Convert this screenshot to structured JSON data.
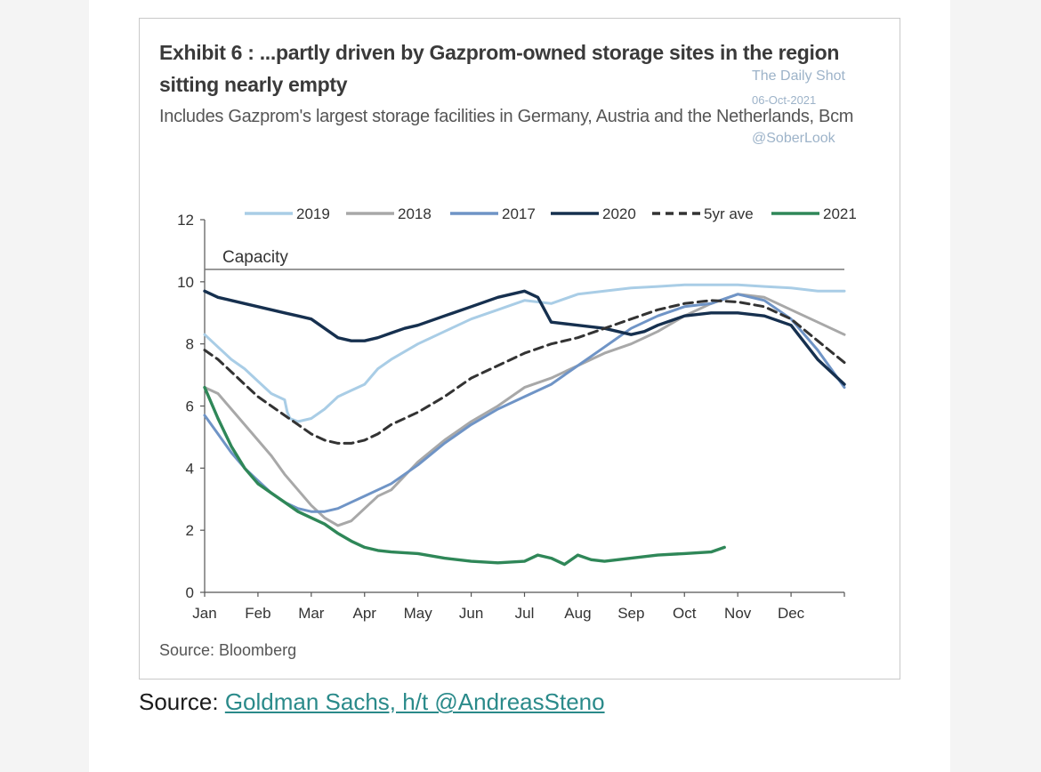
{
  "figure": {
    "title": "Exhibit 6 : ...partly driven by Gazprom-owned storage sites in the region sitting nearly empty",
    "subtitle": "Includes Gazprom's largest storage facilities in Germany, Austria and the Netherlands, Bcm",
    "source": "Source: Bloomberg",
    "watermark": {
      "line1": "The Daily Shot",
      "line2": "06-Oct-2021",
      "line3": "@SoberLook"
    }
  },
  "caption": {
    "prefix": "Source: ",
    "link_text": "Goldman Sachs, h/t @AndreasSteno"
  },
  "colors": {
    "2019": "#a9cde6",
    "2018": "#a8a8a8",
    "2017": "#6f94c6",
    "2020": "#16304f",
    "5yr ave": "#333333",
    "2021": "#2f8758",
    "capacity": "#777777"
  },
  "chart_data": {
    "type": "line",
    "xlabel": "",
    "ylabel": "",
    "ylim": [
      0,
      12
    ],
    "yticks": [
      0,
      2,
      4,
      6,
      8,
      10,
      12
    ],
    "xlim": [
      0,
      12
    ],
    "x_tick_labels": [
      "Jan",
      "Feb",
      "Mar",
      "Apr",
      "May",
      "Jun",
      "Jul",
      "Aug",
      "Sep",
      "Oct",
      "Nov",
      "Dec"
    ],
    "legend_position": "top",
    "grid": false,
    "reference_line": {
      "label": "Capacity",
      "value": 10.4
    },
    "series": [
      {
        "name": "2019",
        "dash": "solid",
        "x": [
          0,
          0.25,
          0.5,
          0.75,
          1.0,
          1.25,
          1.5,
          1.55,
          1.6,
          1.75,
          2.0,
          2.25,
          2.5,
          2.75,
          3.0,
          3.25,
          3.5,
          4.0,
          4.5,
          5.0,
          5.5,
          6.0,
          6.5,
          7.0,
          7.5,
          8.0,
          8.5,
          9.0,
          9.5,
          10.0,
          10.5,
          11.0,
          11.5,
          12.0
        ],
        "y": [
          8.3,
          7.9,
          7.5,
          7.2,
          6.8,
          6.4,
          6.2,
          5.8,
          5.6,
          5.5,
          5.6,
          5.9,
          6.3,
          6.5,
          6.7,
          7.2,
          7.5,
          8.0,
          8.4,
          8.8,
          9.1,
          9.4,
          9.3,
          9.6,
          9.7,
          9.8,
          9.85,
          9.9,
          9.9,
          9.9,
          9.85,
          9.8,
          9.7,
          9.7
        ]
      },
      {
        "name": "2018",
        "dash": "solid",
        "x": [
          0,
          0.25,
          0.5,
          0.75,
          1.0,
          1.25,
          1.5,
          1.75,
          2.0,
          2.25,
          2.5,
          2.75,
          3.0,
          3.25,
          3.5,
          4.0,
          4.5,
          5.0,
          5.5,
          6.0,
          6.5,
          7.0,
          7.5,
          8.0,
          8.5,
          9.0,
          9.5,
          10.0,
          10.5,
          11.0,
          11.5,
          12.0
        ],
        "y": [
          6.6,
          6.4,
          5.9,
          5.4,
          4.9,
          4.4,
          3.8,
          3.3,
          2.8,
          2.4,
          2.15,
          2.3,
          2.7,
          3.1,
          3.3,
          4.2,
          4.9,
          5.5,
          6.0,
          6.6,
          6.9,
          7.3,
          7.7,
          8.0,
          8.4,
          8.9,
          9.3,
          9.6,
          9.5,
          9.1,
          8.7,
          8.3
        ]
      },
      {
        "name": "2017",
        "dash": "solid",
        "x": [
          0,
          0.25,
          0.5,
          0.75,
          1.0,
          1.25,
          1.5,
          1.75,
          2.0,
          2.25,
          2.5,
          2.75,
          3.0,
          3.25,
          3.5,
          4.0,
          4.5,
          5.0,
          5.5,
          6.0,
          6.5,
          7.0,
          7.5,
          8.0,
          8.5,
          9.0,
          9.5,
          10.0,
          10.5,
          11.0,
          11.5,
          12.0
        ],
        "y": [
          5.7,
          5.1,
          4.5,
          4.0,
          3.6,
          3.2,
          2.9,
          2.7,
          2.6,
          2.6,
          2.7,
          2.9,
          3.1,
          3.3,
          3.5,
          4.1,
          4.8,
          5.4,
          5.9,
          6.3,
          6.7,
          7.3,
          7.9,
          8.5,
          8.9,
          9.2,
          9.3,
          9.6,
          9.4,
          8.8,
          7.8,
          6.6
        ]
      },
      {
        "name": "2020",
        "dash": "solid",
        "x": [
          0,
          0.25,
          0.5,
          0.75,
          1.0,
          1.25,
          1.5,
          1.75,
          2.0,
          2.25,
          2.5,
          2.75,
          3.0,
          3.25,
          3.5,
          3.75,
          4.0,
          4.5,
          5.0,
          5.5,
          5.75,
          6.0,
          6.25,
          6.5,
          7.0,
          7.5,
          8.0,
          8.25,
          8.5,
          9.0,
          9.5,
          10.0,
          10.5,
          11.0,
          11.5,
          12.0
        ],
        "y": [
          9.7,
          9.5,
          9.4,
          9.3,
          9.2,
          9.1,
          9.0,
          8.9,
          8.8,
          8.5,
          8.2,
          8.1,
          8.1,
          8.2,
          8.35,
          8.5,
          8.6,
          8.9,
          9.2,
          9.5,
          9.6,
          9.7,
          9.5,
          8.7,
          8.6,
          8.5,
          8.3,
          8.4,
          8.6,
          8.9,
          9.0,
          9.0,
          8.9,
          8.6,
          7.5,
          6.7
        ]
      },
      {
        "name": "5yr ave",
        "dash": "dashed",
        "x": [
          0,
          0.25,
          0.5,
          0.75,
          1.0,
          1.25,
          1.5,
          1.75,
          2.0,
          2.25,
          2.5,
          2.75,
          3.0,
          3.25,
          3.5,
          3.75,
          4.0,
          4.5,
          5.0,
          5.5,
          6.0,
          6.5,
          7.0,
          7.5,
          8.0,
          8.5,
          9.0,
          9.5,
          10.0,
          10.5,
          11.0,
          11.5,
          12.0
        ],
        "y": [
          7.8,
          7.5,
          7.1,
          6.7,
          6.3,
          6.0,
          5.7,
          5.4,
          5.1,
          4.9,
          4.8,
          4.8,
          4.9,
          5.1,
          5.4,
          5.6,
          5.8,
          6.3,
          6.9,
          7.3,
          7.7,
          8.0,
          8.2,
          8.5,
          8.8,
          9.1,
          9.3,
          9.4,
          9.35,
          9.2,
          8.8,
          8.1,
          7.4
        ]
      },
      {
        "name": "2021",
        "dash": "solid",
        "x": [
          0,
          0.25,
          0.5,
          0.75,
          1.0,
          1.25,
          1.5,
          1.75,
          2.0,
          2.25,
          2.5,
          2.75,
          3.0,
          3.25,
          3.5,
          4.0,
          4.5,
          5.0,
          5.5,
          6.0,
          6.25,
          6.5,
          6.75,
          7.0,
          7.25,
          7.5,
          8.0,
          8.5,
          9.0,
          9.5,
          9.75
        ],
        "y": [
          6.6,
          5.6,
          4.7,
          4.0,
          3.5,
          3.2,
          2.9,
          2.6,
          2.4,
          2.2,
          1.9,
          1.65,
          1.45,
          1.35,
          1.3,
          1.25,
          1.1,
          1.0,
          0.95,
          1.0,
          1.2,
          1.1,
          0.9,
          1.2,
          1.05,
          1.0,
          1.1,
          1.2,
          1.25,
          1.3,
          1.45
        ]
      }
    ]
  }
}
